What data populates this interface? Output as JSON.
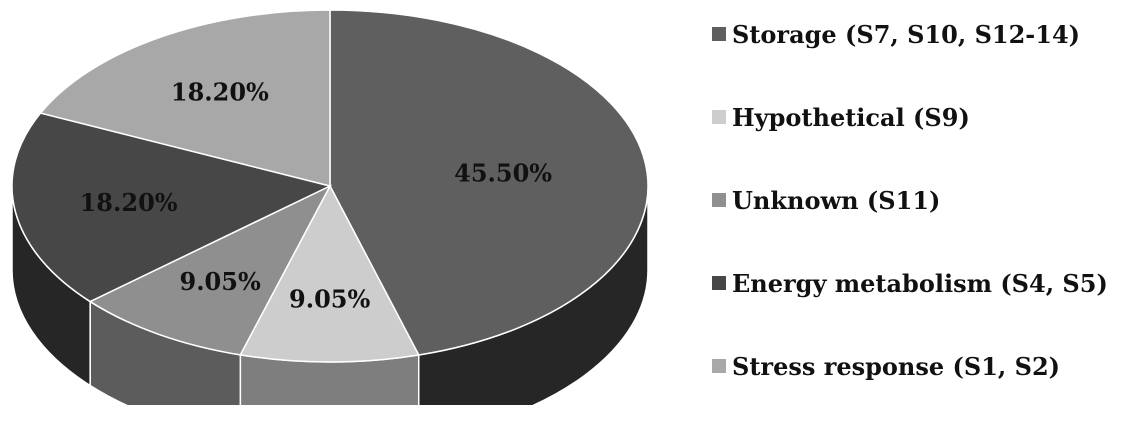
{
  "chart_data": {
    "type": "pie",
    "style": "3d",
    "categories": [
      "Storage (S7, S10, S12-14)",
      "Hypothetical (S9)",
      "Unknown (S11)",
      "Energy metabolism (S4, S5)",
      "Stress response (S1, S2)"
    ],
    "values": [
      45.5,
      9.05,
      9.05,
      18.2,
      18.2
    ],
    "labels": [
      "45.50%",
      "9.05%",
      "9.05%",
      "18.20%",
      "18.20%"
    ],
    "colors": [
      "#5f5f5f",
      "#cdcdcd",
      "#8f8f8f",
      "#474747",
      "#a8a8a8"
    ],
    "side_colors": [
      "#262626",
      "#7e7e7e",
      "#5c5c5c",
      "#262626",
      "#6a6a6a"
    ],
    "legend_position": "right"
  }
}
